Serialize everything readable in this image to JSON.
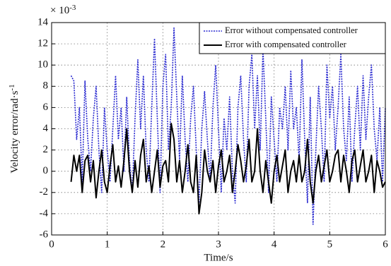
{
  "chart_data": {
    "type": "line",
    "y_multiplier": {
      "base": "× 10",
      "exponent": "-3"
    },
    "xlabel": "Time/s",
    "ylabel": {
      "base": "Velocity error/rad·s",
      "exponent": "-1"
    },
    "xlim": [
      0,
      6
    ],
    "xticks": [
      0,
      1,
      2,
      3,
      4,
      5,
      6
    ],
    "ylim": [
      -6,
      14
    ],
    "yticks": [
      -6,
      -4,
      -2,
      0,
      2,
      4,
      6,
      8,
      10,
      12,
      14
    ],
    "grid": true,
    "legend": "top-right",
    "x": [
      0.35,
      0.4,
      0.45,
      0.5,
      0.55,
      0.6,
      0.65,
      0.7,
      0.75,
      0.8,
      0.85,
      0.9,
      0.95,
      1,
      1.05,
      1.1,
      1.15,
      1.2,
      1.25,
      1.3,
      1.35,
      1.4,
      1.45,
      1.5,
      1.55,
      1.6,
      1.65,
      1.7,
      1.75,
      1.8,
      1.85,
      1.9,
      1.95,
      2,
      2.05,
      2.1,
      2.15,
      2.2,
      2.25,
      2.3,
      2.35,
      2.4,
      2.45,
      2.5,
      2.55,
      2.6,
      2.65,
      2.7,
      2.75,
      2.8,
      2.85,
      2.9,
      2.95,
      3,
      3.05,
      3.1,
      3.15,
      3.2,
      3.25,
      3.3,
      3.35,
      3.4,
      3.45,
      3.5,
      3.55,
      3.6,
      3.65,
      3.7,
      3.75,
      3.8,
      3.85,
      3.9,
      3.95,
      4,
      4.05,
      4.1,
      4.15,
      4.2,
      4.25,
      4.3,
      4.35,
      4.4,
      4.45,
      4.5,
      4.55,
      4.6,
      4.65,
      4.7,
      4.75,
      4.8,
      4.85,
      4.9,
      4.95,
      5,
      5.05,
      5.1,
      5.15,
      5.2,
      5.25,
      5.3,
      5.35,
      5.4,
      5.45,
      5.5,
      5.55,
      5.6,
      5.65,
      5.7,
      5.75,
      5.8,
      5.85,
      5.9,
      5.95,
      6
    ],
    "series": [
      {
        "name": "Error without compensated controller",
        "color": "#2a2ad0",
        "style": "dotted",
        "values": [
          9,
          8.5,
          3,
          6,
          -1,
          8.5,
          3,
          0,
          5,
          8,
          2,
          -2,
          6,
          2,
          -1,
          4,
          9,
          3,
          6,
          0,
          7,
          1,
          -2,
          5,
          10.5,
          4,
          9,
          2,
          -1,
          6,
          12.5,
          5,
          -2,
          8,
          11,
          2,
          6,
          13.5,
          7,
          1,
          9,
          3,
          -1,
          5,
          8,
          2,
          -3,
          4,
          7.5,
          3,
          -1,
          6,
          10,
          4,
          -2,
          5,
          2,
          7,
          0,
          -3,
          6,
          9,
          3,
          -1,
          8,
          11,
          4,
          9,
          2,
          11.5,
          5,
          -2,
          7,
          3,
          -1,
          6,
          4,
          8,
          2,
          9.5,
          4,
          6,
          1,
          10.5,
          3,
          -3,
          7,
          -5,
          2,
          8,
          4,
          -1,
          10,
          5,
          8,
          2,
          6,
          11,
          4,
          1,
          7,
          -1,
          4,
          8,
          2,
          9,
          3,
          7,
          10,
          4,
          1,
          6,
          -1,
          6
        ]
      },
      {
        "name": "Error with compensated controller",
        "color": "#000000",
        "style": "solid",
        "values": [
          -1,
          1.5,
          0,
          1.5,
          -2,
          1,
          1.5,
          -1,
          1,
          -2.5,
          0,
          2,
          -1,
          -2,
          0.5,
          2.5,
          -1,
          0.5,
          -1.5,
          1,
          4,
          0,
          -2,
          1,
          -1.5,
          1.5,
          3,
          -1,
          0.5,
          -2,
          0,
          2,
          -1.5,
          0.5,
          1,
          -1,
          4.5,
          3,
          -1,
          1,
          -2,
          0,
          2.5,
          -1,
          -2,
          1.5,
          -4,
          -2,
          2,
          0,
          -1,
          1,
          -2,
          0.5,
          2,
          -1,
          0,
          1.5,
          -2,
          0,
          2.5,
          1,
          -1,
          0.5,
          3,
          -1,
          0,
          4,
          0,
          -2,
          1,
          -1,
          -3,
          0,
          1.5,
          -1,
          0.5,
          2,
          -2,
          0,
          1,
          -1,
          1.5,
          -1,
          0,
          3,
          -1,
          -3,
          0,
          1.5,
          -1,
          0.5,
          2,
          -1,
          0,
          1.5,
          2,
          -1,
          1.5,
          0,
          -2,
          1,
          2,
          -1,
          0.5,
          2,
          -1,
          0,
          1.5,
          -2,
          1,
          0,
          -1.5,
          -1
        ]
      }
    ]
  }
}
